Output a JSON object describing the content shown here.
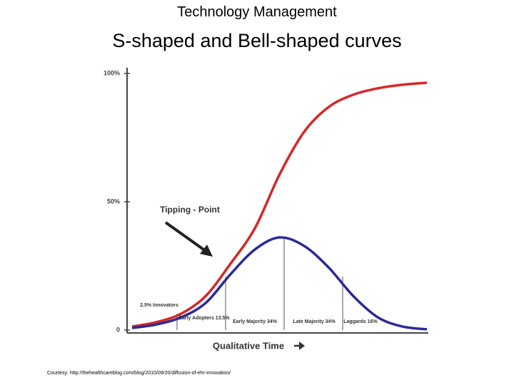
{
  "chart_data": {
    "type": "line",
    "title": "Technology Management",
    "subtitle": "S-shaped and Bell-shaped curves",
    "x_label": "Qualitative Time",
    "categories": [
      null,
      null,
      null,
      null,
      null,
      null,
      null,
      null,
      null,
      null,
      null,
      null,
      null
    ],
    "ylim": [
      0,
      100
    ],
    "yticks": [
      {
        "value": 0,
        "label": "0"
      },
      {
        "value": 50,
        "label": "50%"
      },
      {
        "value": 100,
        "label": "100%"
      }
    ],
    "series": [
      {
        "color": "#d62728",
        "values": [
          1.4,
          3.1,
          6.4,
          13.3,
          25.8,
          39.7,
          60.6,
          77.2,
          86.9,
          91.7,
          94.2,
          95.6,
          96.4
        ]
      },
      {
        "color": "#2a2a9a",
        "values": [
          0.8,
          2.2,
          5.0,
          10.6,
          21.7,
          31.4,
          36.1,
          32.8,
          24.4,
          13.3,
          5.0,
          1.4,
          0.3
        ]
      }
    ],
    "annotations": [
      "Tipping - Point",
      "2.5% Innovators",
      "Early Adopters 13.5%",
      "Early Majority 34%",
      "Late Majority 34%",
      "Laggards 16%"
    ],
    "footnote": "Courtesy: http://thehealthcareblog.com/blog/2010/09/20/diffusion-of-ehr-innovation/"
  }
}
